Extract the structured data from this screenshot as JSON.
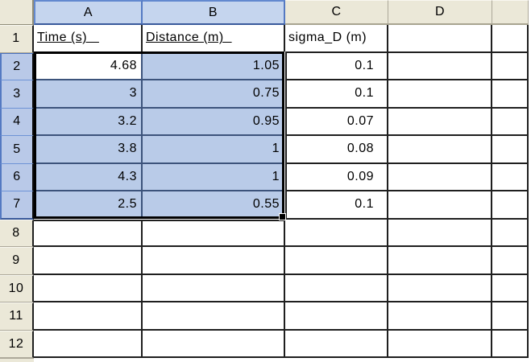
{
  "app": {
    "name": "Spreadsheet worksheet view"
  },
  "column_headers": [
    "A",
    "B",
    "C",
    "D"
  ],
  "row_headers": [
    "1",
    "2",
    "3",
    "4",
    "5",
    "6",
    "7",
    "8",
    "9",
    "10",
    "11",
    "12"
  ],
  "cells": {
    "A1": "Time (s)   ",
    "B1": "Distance (m)  ",
    "C1": "sigma_D (m)",
    "A2": "4.68",
    "B2": "1.05",
    "C2": "0.1",
    "A3": "3",
    "B3": "0.75",
    "C3": "0.1",
    "A4": "3.2",
    "B4": "0.95",
    "C4": "0.07",
    "A5": "3.8",
    "B5": "1",
    "C5": "0.08",
    "A6": "4.3",
    "B6": "1",
    "C6": "0.09",
    "A7": "2.5",
    "B7": "0.55",
    "C7": "0.1"
  },
  "selection": {
    "range": "A2:B7",
    "active_cell": "A2",
    "selected_columns": [
      "A",
      "B"
    ],
    "selected_rows": [
      "2",
      "3",
      "4",
      "5",
      "6",
      "7"
    ]
  },
  "chart_data": {
    "type": "table",
    "columns": [
      "Time (s)",
      "Distance (m)",
      "sigma_D (m)"
    ],
    "rows": [
      [
        4.68,
        1.05,
        0.1
      ],
      [
        3,
        0.75,
        0.1
      ],
      [
        3.2,
        0.95,
        0.07
      ],
      [
        3.8,
        1,
        0.08
      ],
      [
        4.3,
        1,
        0.09
      ],
      [
        2.5,
        0.55,
        0.1
      ]
    ]
  },
  "colors": {
    "selection_fill": "#b9cbe8",
    "selection_gridline": "#3c537b",
    "marquee": "#000000",
    "gridline": "#1f1f1f",
    "header_bg": "#ebe8d8",
    "header_selected_fill": "#c5d5ee",
    "header_selected_border": "#39599b",
    "header_border": "#aca899"
  }
}
